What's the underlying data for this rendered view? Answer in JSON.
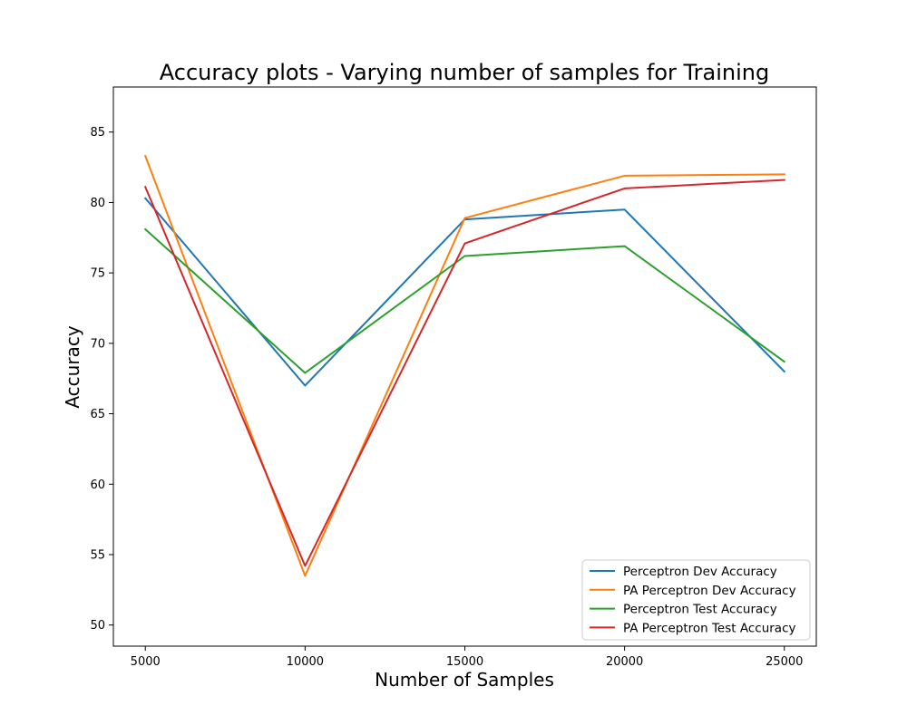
{
  "chart_data": {
    "type": "line",
    "title": "Accuracy plots - Varying number of samples for Training",
    "xlabel": "Number of Samples",
    "ylabel": "Accuracy",
    "x": [
      5000,
      10000,
      15000,
      20000,
      25000
    ],
    "x_ticks": [
      "5000",
      "10000",
      "15000",
      "20000",
      "25000"
    ],
    "y_ticks": [
      "50",
      "55",
      "60",
      "65",
      "70",
      "75",
      "80",
      "85"
    ],
    "xlim": [
      4000,
      26000
    ],
    "ylim": [
      48.5,
      88.2
    ],
    "grid": false,
    "legend_position": "lower-right",
    "series": [
      {
        "name": "Perceptron Dev Accuracy",
        "color": "#1f77b4",
        "values": [
          80.3,
          67.0,
          78.8,
          79.5,
          68.0
        ]
      },
      {
        "name": "PA Perceptron Dev Accuracy",
        "color": "#ff7f0e",
        "values": [
          83.3,
          53.5,
          78.9,
          81.9,
          82.0
        ]
      },
      {
        "name": "Perceptron Test Accuracy",
        "color": "#2ca02c",
        "values": [
          78.1,
          67.9,
          76.2,
          76.9,
          68.7
        ]
      },
      {
        "name": "PA Perceptron Test Accuracy",
        "color": "#d62728",
        "values": [
          81.1,
          54.2,
          77.1,
          81.0,
          81.6
        ]
      }
    ]
  }
}
